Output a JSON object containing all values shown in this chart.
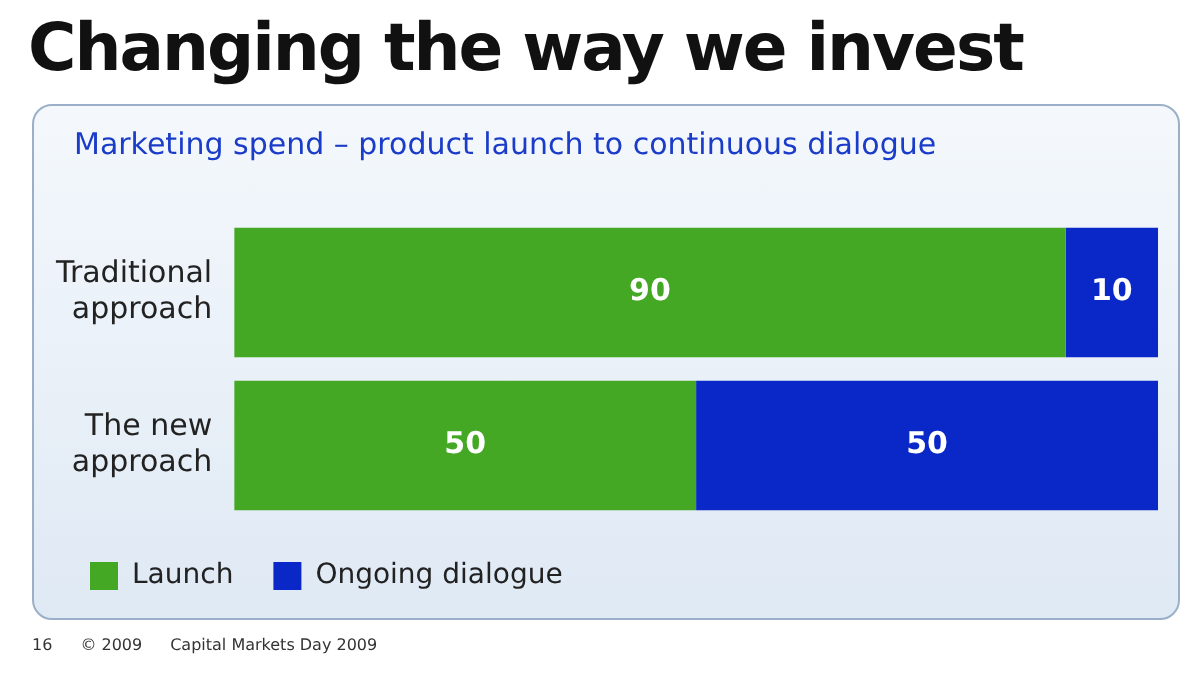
{
  "chart_data": {
    "type": "bar",
    "title": "Changing the way we invest",
    "subtitle": "Marketing spend – product launch to continuous dialogue",
    "categories": [
      "Traditional approach",
      "The new approach"
    ],
    "series": [
      {
        "name": "Launch",
        "color": "#44a824",
        "values": [
          90,
          50
        ]
      },
      {
        "name": "Ongoing dialogue",
        "color": "#0a28c8",
        "values": [
          10,
          50
        ]
      }
    ],
    "orientation": "horizontal",
    "stacked": true,
    "data_labels": true,
    "legend": "bottom",
    "grid": false,
    "annotations": [
      "16",
      "© 2009",
      "Capital Markets Day 2009"
    ]
  }
}
